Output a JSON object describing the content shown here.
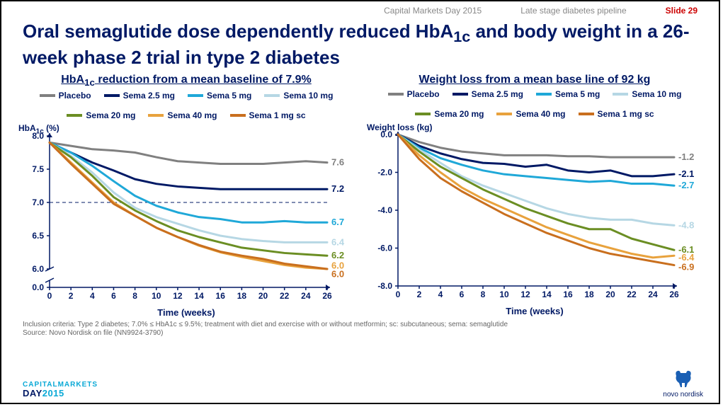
{
  "header": {
    "event": "Capital Markets Day 2015",
    "section": "Late stage diabetes pipeline",
    "slide_label": "Slide 29"
  },
  "title_html": "Oral semaglutide dose dependently reduced HbA<sub>1c</sub> and body weight in a 26-week phase 2 trial in type 2 diabetes",
  "legend": [
    {
      "label": "Placebo",
      "color": "#808080"
    },
    {
      "label": "Sema 2.5 mg",
      "color": "#001965"
    },
    {
      "label": "Sema 5 mg",
      "color": "#1fa8d8"
    },
    {
      "label": "Sema 10 mg",
      "color": "#b6d7e4"
    },
    {
      "label": "Sema 20 mg",
      "color": "#6b8e23"
    },
    {
      "label": "Sema 40 mg",
      "color": "#e8a23d"
    },
    {
      "label": "Sema 1 mg sc",
      "color": "#c96f1e"
    }
  ],
  "left_chart": {
    "title_html": "HbA<sub>1c</sub> reduction from a mean baseline of 7.9%",
    "ylabel_html": "HbA<sub>1c</sub> (%)",
    "xlabel": "Time (weeks)",
    "x": [
      0,
      2,
      4,
      6,
      8,
      10,
      12,
      14,
      16,
      18,
      20,
      22,
      24,
      26
    ],
    "xlim": [
      0,
      26
    ],
    "yticks": [
      8.0,
      7.5,
      7.0,
      6.5,
      6.0,
      0.0
    ],
    "ref_line": 7.0,
    "line_width": 3,
    "axis_color": "#001965",
    "series": {
      "Placebo": [
        7.9,
        7.85,
        7.8,
        7.78,
        7.75,
        7.68,
        7.62,
        7.6,
        7.58,
        7.58,
        7.58,
        7.6,
        7.62,
        7.6
      ],
      "Sema 2.5 mg": [
        7.9,
        7.75,
        7.6,
        7.48,
        7.35,
        7.28,
        7.24,
        7.22,
        7.2,
        7.2,
        7.2,
        7.2,
        7.2,
        7.2
      ],
      "Sema 5 mg": [
        7.9,
        7.75,
        7.55,
        7.32,
        7.1,
        6.95,
        6.85,
        6.78,
        6.75,
        6.7,
        6.7,
        6.72,
        6.7,
        6.7
      ],
      "Sema 10 mg": [
        7.9,
        7.7,
        7.45,
        7.15,
        6.92,
        6.78,
        6.68,
        6.58,
        6.5,
        6.45,
        6.42,
        6.4,
        6.4,
        6.4
      ],
      "Sema 20 mg": [
        7.9,
        7.68,
        7.4,
        7.08,
        6.88,
        6.72,
        6.58,
        6.48,
        6.4,
        6.32,
        6.28,
        6.24,
        6.22,
        6.2
      ],
      "Sema 40 mg": [
        7.9,
        7.6,
        7.3,
        7.0,
        6.8,
        6.62,
        6.48,
        6.35,
        6.25,
        6.18,
        6.12,
        6.06,
        6.02,
        6.0
      ],
      "Sema 1 mg sc": [
        7.9,
        7.58,
        7.28,
        6.98,
        6.8,
        6.62,
        6.48,
        6.36,
        6.26,
        6.2,
        6.15,
        6.08,
        6.04,
        6.0
      ]
    },
    "end_labels": [
      {
        "y": 7.6,
        "text": "7.6",
        "color": "#808080"
      },
      {
        "y": 7.2,
        "text": "7.2",
        "color": "#001965"
      },
      {
        "y": 6.7,
        "text": "6.7",
        "color": "#1fa8d8"
      },
      {
        "y": 6.4,
        "text": "6.4",
        "color": "#b6d7e4"
      },
      {
        "y": 6.2,
        "text": "6.2",
        "color": "#6b8e23"
      },
      {
        "y": 6.05,
        "text": "6.0",
        "color": "#e8a23d"
      },
      {
        "y": 5.92,
        "text": "6.0",
        "color": "#c96f1e"
      }
    ]
  },
  "right_chart": {
    "title": "Weight loss from a mean base line of 92 kg",
    "ylabel": "Weight loss (kg)",
    "xlabel": "Time (weeks)",
    "x": [
      0,
      2,
      4,
      6,
      8,
      10,
      12,
      14,
      16,
      18,
      20,
      22,
      24,
      26
    ],
    "xlim": [
      0,
      26
    ],
    "ylim": [
      -8,
      0
    ],
    "yticks": [
      0.0,
      -2.0,
      -4.0,
      -6.0,
      -8.0
    ],
    "line_width": 3,
    "axis_color": "#001965",
    "series": {
      "Placebo": [
        0,
        -0.4,
        -0.7,
        -0.9,
        -1.0,
        -1.1,
        -1.1,
        -1.1,
        -1.15,
        -1.15,
        -1.2,
        -1.2,
        -1.2,
        -1.2
      ],
      "Sema 2.5 mg": [
        0,
        -0.6,
        -1.0,
        -1.3,
        -1.5,
        -1.55,
        -1.7,
        -1.6,
        -1.9,
        -2.0,
        -1.9,
        -2.2,
        -2.2,
        -2.1
      ],
      "Sema 5 mg": [
        0,
        -0.7,
        -1.25,
        -1.6,
        -1.9,
        -2.1,
        -2.2,
        -2.3,
        -2.4,
        -2.5,
        -2.45,
        -2.6,
        -2.6,
        -2.7
      ],
      "Sema 10 mg": [
        0,
        -0.8,
        -1.5,
        -2.2,
        -2.7,
        -3.1,
        -3.5,
        -3.9,
        -4.2,
        -4.4,
        -4.5,
        -4.5,
        -4.7,
        -4.8
      ],
      "Sema 20 mg": [
        0,
        -0.9,
        -1.7,
        -2.3,
        -2.9,
        -3.4,
        -3.9,
        -4.3,
        -4.7,
        -5.0,
        -5.0,
        -5.5,
        -5.8,
        -6.1
      ],
      "Sema 40 mg": [
        0,
        -1.1,
        -2.0,
        -2.8,
        -3.4,
        -3.9,
        -4.4,
        -4.9,
        -5.3,
        -5.7,
        -6.0,
        -6.3,
        -6.5,
        -6.4
      ],
      "Sema 1 mg sc": [
        0,
        -1.3,
        -2.3,
        -3.0,
        -3.6,
        -4.2,
        -4.7,
        -5.2,
        -5.6,
        -6.0,
        -6.3,
        -6.5,
        -6.7,
        -6.9
      ]
    },
    "end_labels": [
      {
        "y": -1.2,
        "text": "-1.2",
        "color": "#808080"
      },
      {
        "y": -2.1,
        "text": "-2.1",
        "color": "#001965"
      },
      {
        "y": -2.7,
        "text": "-2.7",
        "color": "#1fa8d8"
      },
      {
        "y": -4.8,
        "text": "-4.8",
        "color": "#b6d7e4"
      },
      {
        "y": -6.1,
        "text": "-6.1",
        "color": "#6b8e23"
      },
      {
        "y": -6.5,
        "text": "-6.4",
        "color": "#e8a23d"
      },
      {
        "y": -7.0,
        "text": "-6.9",
        "color": "#c96f1e"
      }
    ]
  },
  "footnote": "Inclusion criteria: Type 2 diabetes; 7.0% ≤ HbA1c ≤ 9.5%; treatment with diet and exercise with or without metformin; sc: subcutaneous; sema: semaglutide\nSource: Novo Nordisk on file (NN9924-3790)",
  "footer_left": {
    "cm": "CAPITALMARKETS",
    "day": "DAY",
    "year": "2015"
  },
  "footer_right": "novo nordisk"
}
